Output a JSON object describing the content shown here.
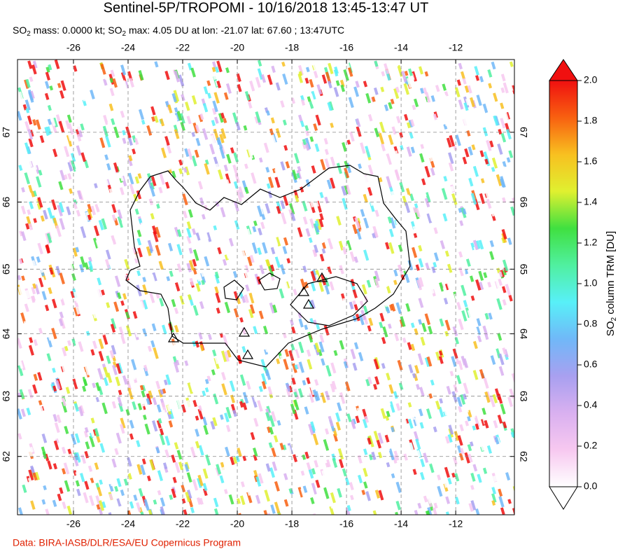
{
  "chart_data": {
    "type": "map",
    "title": "Sentinel-5P/TROPOMI - 10/16/2018 13:45-13:47 UT",
    "subtitle": [
      "SO",
      "2",
      " mass: 0.0000 kt; SO",
      "2",
      " max: 4.05 DU at lon: -21.07 lat: 67.60 ; 13:47UTC"
    ],
    "projection": "mercator",
    "xlim": [
      -28.05,
      -9.85
    ],
    "ylim": [
      61.0,
      68.0
    ],
    "xticks": [
      -26,
      -24,
      -22,
      -20,
      -18,
      -16,
      -14,
      -12
    ],
    "yticks": [
      62,
      63,
      64,
      65,
      66,
      67
    ],
    "grid": true,
    "colorbar": {
      "label": [
        "SO",
        "2",
        " column TRM [DU]"
      ],
      "lim": [
        0,
        2
      ],
      "ticks": [
        {
          "value": 0,
          "label": "0.0"
        },
        {
          "value": 0.2,
          "label": "0.2"
        },
        {
          "value": 0.4,
          "label": "0.4"
        },
        {
          "value": 0.6,
          "label": "0.6"
        },
        {
          "value": 0.8,
          "label": "0.8"
        },
        {
          "value": 1,
          "label": "1.0"
        },
        {
          "value": 1.2,
          "label": "1.2"
        },
        {
          "value": 1.4,
          "label": "1.4"
        },
        {
          "value": 1.6,
          "label": "1.6"
        },
        {
          "value": 1.8,
          "label": "1.8"
        },
        {
          "value": 2,
          "label": "2.0"
        }
      ],
      "colors": [
        "#ffffff",
        "#f7c8f0",
        "#d9b0f0",
        "#a8a0f0",
        "#70b8f8",
        "#58f0f8",
        "#50f0a0",
        "#40e040",
        "#e0f030",
        "#f8c020",
        "#f86010",
        "#f01010"
      ]
    },
    "footer": "Data: BIRA-IASB/DLR/ESA/EU Copernicus Program"
  }
}
